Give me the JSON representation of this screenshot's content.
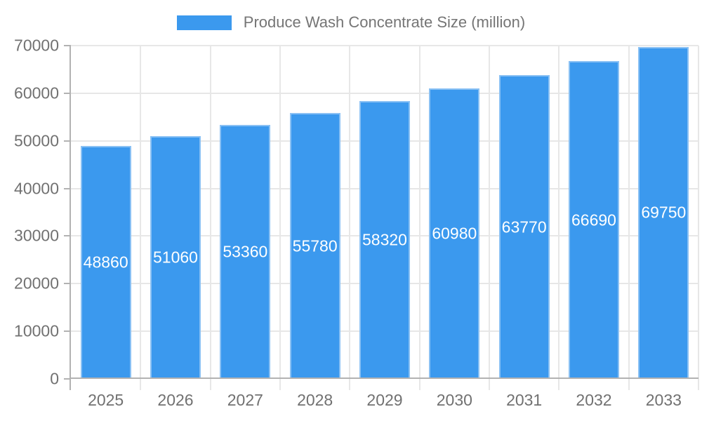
{
  "chart_data": {
    "type": "bar",
    "title": "Produce Wash Concentrate Size (million)",
    "categories": [
      "2025",
      "2026",
      "2027",
      "2028",
      "2029",
      "2030",
      "2031",
      "2032",
      "2033"
    ],
    "values": [
      48860,
      51060,
      53360,
      55780,
      58320,
      60980,
      63770,
      66690,
      69750
    ],
    "bar_labels": [
      "48860",
      "51060",
      "53360",
      "55780",
      "58320",
      "60980",
      "63770",
      "66690",
      "69750"
    ],
    "xlabel": "",
    "ylabel": "",
    "ylim": [
      0,
      70000
    ],
    "ytick_step": 10000,
    "ytick_labels": [
      "0",
      "10000",
      "20000",
      "30000",
      "40000",
      "50000",
      "60000",
      "70000"
    ],
    "grid": true,
    "legend_position": "top-center",
    "colors": {
      "bar": "#3b99ee",
      "bar_border": "#8ac1f4",
      "grid": "#e7e7e7",
      "axis": "#b2b2b2",
      "tick_text": "#717171",
      "legend_text": "#757575",
      "bar_label_text": "#ffffff",
      "background": "#ffffff"
    }
  }
}
